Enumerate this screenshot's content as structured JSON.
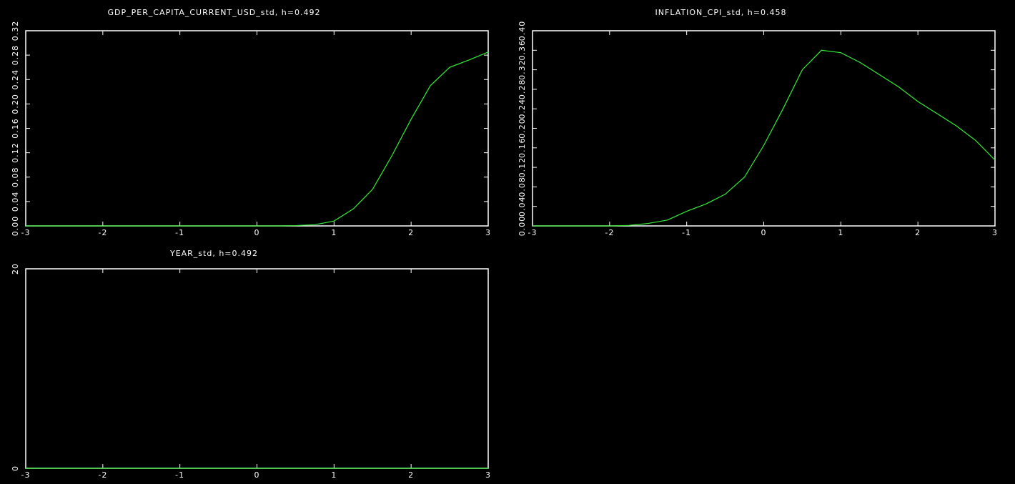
{
  "chart_data": [
    {
      "type": "line",
      "title": "GDP_PER_CAPITA_CURRENT_USD_std, h=0.492",
      "x": [
        -3,
        -2.5,
        -2,
        -1.5,
        -1,
        -0.5,
        0,
        0.25,
        0.5,
        0.75,
        1,
        1.25,
        1.5,
        1.75,
        2,
        2.25,
        2.5,
        2.75,
        3
      ],
      "values": [
        0,
        0,
        0,
        0,
        0,
        0,
        0,
        0,
        0.0005,
        0.002,
        0.008,
        0.028,
        0.06,
        0.115,
        0.175,
        0.23,
        0.26,
        0.272,
        0.285
      ],
      "color": "#33ee33",
      "xlim": [
        -3,
        3
      ],
      "xticks": [
        -3,
        -2,
        -1,
        0,
        1,
        2,
        3
      ],
      "ylim": [
        0,
        0.32
      ],
      "yticks": [
        {
          "value": 0,
          "label": "0.00"
        },
        {
          "value": 0.04,
          "label": "0.04"
        },
        {
          "value": 0.08,
          "label": "0.08"
        },
        {
          "value": 0.12,
          "label": "0.12"
        },
        {
          "value": 0.16,
          "label": "0.16"
        },
        {
          "value": 0.2,
          "label": "0.20"
        },
        {
          "value": 0.24,
          "label": "0.24"
        },
        {
          "value": 0.28,
          "label": "0.28"
        },
        {
          "value": 0.32,
          "label": "0.32"
        }
      ]
    },
    {
      "type": "line",
      "title": "INFLATION_CPI_std, h=0.458",
      "x": [
        -3,
        -2.5,
        -2,
        -1.75,
        -1.5,
        -1.25,
        -1,
        -0.75,
        -0.5,
        -0.25,
        0,
        0.25,
        0.5,
        0.75,
        1,
        1.25,
        1.5,
        1.75,
        2,
        2.25,
        2.5,
        2.75,
        3
      ],
      "values": [
        0,
        0,
        0,
        0.001,
        0.005,
        0.012,
        0.03,
        0.045,
        0.065,
        0.1,
        0.165,
        0.24,
        0.32,
        0.36,
        0.355,
        0.335,
        0.31,
        0.285,
        0.255,
        0.23,
        0.205,
        0.175,
        0.135
      ],
      "color": "#33ee33",
      "xlim": [
        -3,
        3
      ],
      "xticks": [
        -3,
        -2,
        -1,
        0,
        1,
        2,
        3
      ],
      "ylim": [
        0,
        0.4
      ],
      "yticks": [
        {
          "value": 0,
          "label": "0.00"
        },
        {
          "value": 0.04,
          "label": "0.04"
        },
        {
          "value": 0.08,
          "label": "0.08"
        },
        {
          "value": 0.12,
          "label": "0.12"
        },
        {
          "value": 0.16,
          "label": "0.16"
        },
        {
          "value": 0.2,
          "label": "0.20"
        },
        {
          "value": 0.24,
          "label": "0.24"
        },
        {
          "value": 0.28,
          "label": "0.28"
        },
        {
          "value": 0.32,
          "label": "0.32"
        },
        {
          "value": 0.36,
          "label": "0.36"
        },
        {
          "value": 0.4,
          "label": "0.40"
        }
      ]
    },
    {
      "type": "line",
      "title": "YEAR_std, h=0.492",
      "x": [
        -3,
        -2,
        -1,
        0,
        1,
        2,
        3
      ],
      "values": [
        0,
        0,
        0,
        0,
        0,
        0,
        0
      ],
      "color": "#33ee33",
      "xlim": [
        -3,
        3
      ],
      "xticks": [
        -3,
        -2,
        -1,
        0,
        1,
        2,
        3
      ],
      "ylim": [
        0,
        20
      ],
      "yticks": [
        0,
        20
      ]
    }
  ]
}
